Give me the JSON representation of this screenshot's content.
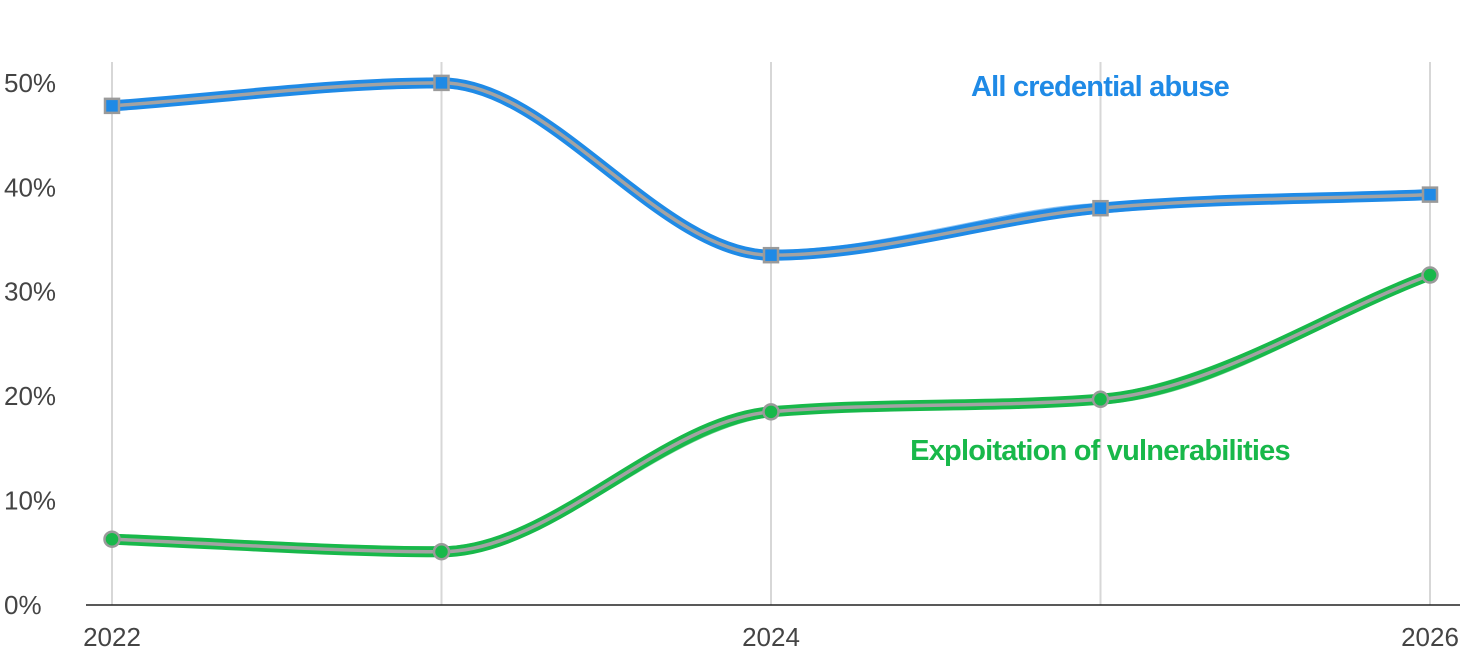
{
  "chart_data": {
    "type": "line",
    "x_ticks": [
      {
        "x": 2022,
        "label": "2022"
      },
      {
        "x": 2024,
        "label": "2024"
      },
      {
        "x": 2026,
        "label": "2026"
      }
    ],
    "x_gridlines": [
      2022,
      2023,
      2024,
      2025,
      2026
    ],
    "y_ticks": [
      {
        "y": 0,
        "label": "0%"
      },
      {
        "y": 10,
        "label": "10%"
      },
      {
        "y": 20,
        "label": "20%"
      },
      {
        "y": 30,
        "label": "30%"
      },
      {
        "y": 40,
        "label": "40%"
      },
      {
        "y": 50,
        "label": "50%"
      }
    ],
    "xlim": [
      2022,
      2026
    ],
    "ylim": [
      0,
      52
    ],
    "x_grid": true,
    "series": [
      {
        "name": "All credential abuse",
        "color": "#1f8ae6",
        "marker": "square",
        "x": [
          2022,
          2023,
          2024,
          2025,
          2026
        ],
        "y": [
          47.8,
          50.0,
          33.5,
          38.0,
          39.3
        ]
      },
      {
        "name": "Exploitation of vulnerabilities",
        "color": "#18b84a",
        "marker": "circle",
        "x": [
          2022,
          2023,
          2024,
          2025,
          2026
        ],
        "y": [
          6.3,
          5.1,
          18.5,
          19.7,
          31.6
        ]
      }
    ]
  }
}
